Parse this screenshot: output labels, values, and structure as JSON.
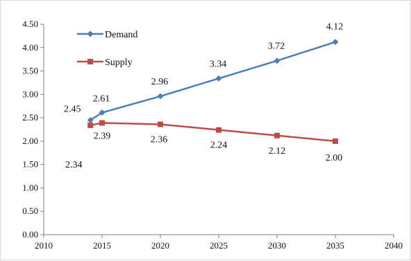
{
  "chart_data": {
    "type": "line",
    "title": "",
    "xlabel": "",
    "ylabel": "",
    "xlim": [
      2010,
      2040
    ],
    "ylim": [
      0,
      4.5
    ],
    "xticks": [
      2010,
      2015,
      2020,
      2025,
      2030,
      2035,
      2040
    ],
    "yticks": [
      "0.00",
      "0.50",
      "1.00",
      "1.50",
      "2.00",
      "2.50",
      "3.00",
      "3.50",
      "4.00",
      "4.50"
    ],
    "grid": false,
    "legend_position": "top-left",
    "series": [
      {
        "name": "Demand",
        "color": "#4a7ebb",
        "marker": "diamond",
        "x": [
          2014,
          2015,
          2020,
          2025,
          2030,
          2035
        ],
        "y": [
          2.45,
          2.61,
          2.96,
          3.34,
          3.72,
          4.12
        ],
        "labels": [
          "2.45",
          "2.61",
          "2.96",
          "3.34",
          "3.72",
          "4.12"
        ]
      },
      {
        "name": "Supply",
        "color": "#be4b48",
        "marker": "square",
        "x": [
          2014,
          2015,
          2020,
          2025,
          2030,
          2035
        ],
        "y": [
          2.34,
          2.39,
          2.36,
          2.24,
          2.12,
          2.0
        ],
        "labels": [
          "2.34",
          "2.39",
          "2.36",
          "2.24",
          "2.12",
          "2.00"
        ]
      }
    ]
  }
}
